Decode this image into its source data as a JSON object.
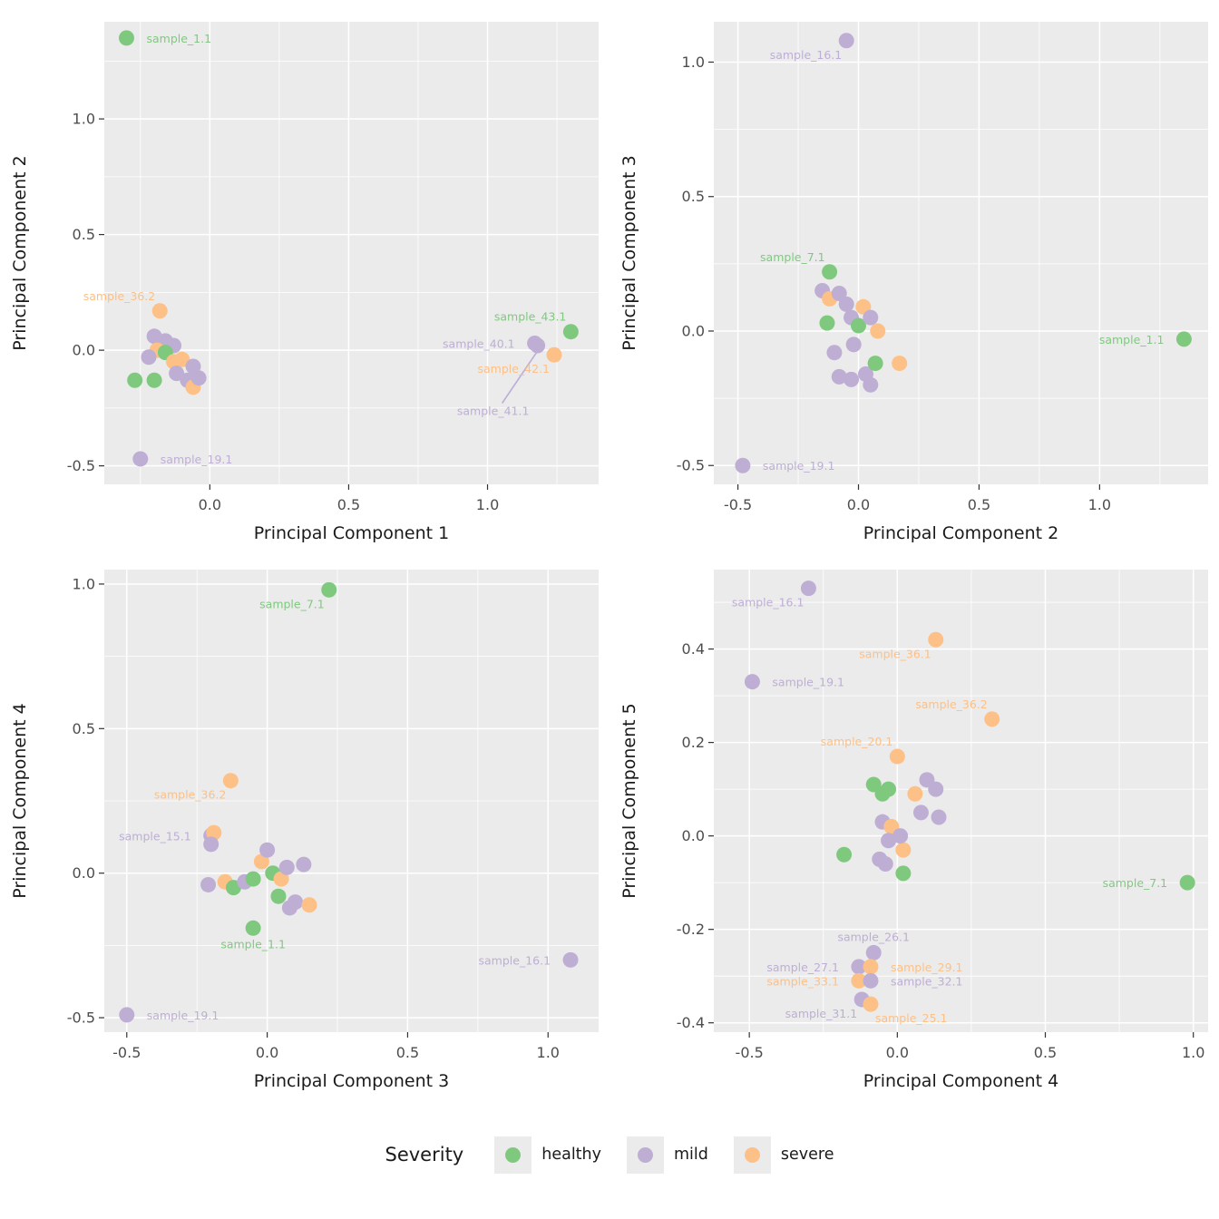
{
  "colors": {
    "healthy": "#7FC97F",
    "mild": "#BEAED4",
    "severe": "#FDC086",
    "panel_bg": "#EBEBEB",
    "grid_major": "#FFFFFF",
    "grid_minor": "#FFFFFF",
    "axis_text": "#4D4D4D",
    "axis_title": "#1a1a1a",
    "tick_mark": "#333333"
  },
  "legend": {
    "title": "Severity",
    "items": [
      {
        "label": "healthy",
        "severity": "healthy"
      },
      {
        "label": "mild",
        "severity": "mild"
      },
      {
        "label": "severe",
        "severity": "severe"
      }
    ]
  },
  "chart_data": [
    {
      "id": "pc2-vs-pc1",
      "type": "scatter",
      "xlabel": "Principal Component 1",
      "ylabel": "Principal Component 2",
      "xlim": [
        -0.38,
        1.4
      ],
      "ylim": [
        -0.58,
        1.42
      ],
      "xticks": [
        0.0,
        0.5,
        1.0
      ],
      "yticks": [
        -0.5,
        0.0,
        0.5,
        1.0
      ],
      "points": [
        {
          "x": -0.3,
          "y": 1.35,
          "severity": "healthy",
          "label": "sample_1.1",
          "label_pos": "right"
        },
        {
          "x": -0.18,
          "y": 0.17,
          "severity": "severe",
          "label": "sample_36.2",
          "label_pos": "above-left"
        },
        {
          "x": -0.25,
          "y": -0.47,
          "severity": "mild",
          "label": "sample_19.1",
          "label_pos": "right"
        },
        {
          "x": 1.3,
          "y": 0.08,
          "severity": "healthy",
          "label": "sample_43.1",
          "label_pos": "above-left"
        },
        {
          "x": 1.17,
          "y": 0.03,
          "severity": "mild",
          "label": "sample_40.1",
          "label_pos": "left"
        },
        {
          "x": 1.24,
          "y": -0.02,
          "severity": "severe",
          "label": "sample_42.1",
          "label_pos": "below-left"
        },
        {
          "x": 1.18,
          "y": 0.02,
          "severity": "mild",
          "label": "sample_41.1",
          "label_pos": "leader",
          "label_x": 1.02,
          "label_y": -0.28
        },
        {
          "x": -0.2,
          "y": 0.06,
          "severity": "mild"
        },
        {
          "x": -0.16,
          "y": 0.04,
          "severity": "mild"
        },
        {
          "x": -0.13,
          "y": 0.02,
          "severity": "mild"
        },
        {
          "x": -0.19,
          "y": 0.0,
          "severity": "severe"
        },
        {
          "x": -0.16,
          "y": -0.01,
          "severity": "healthy"
        },
        {
          "x": -0.22,
          "y": -0.03,
          "severity": "mild"
        },
        {
          "x": -0.13,
          "y": -0.05,
          "severity": "severe"
        },
        {
          "x": -0.1,
          "y": -0.04,
          "severity": "severe"
        },
        {
          "x": -0.12,
          "y": -0.1,
          "severity": "mild"
        },
        {
          "x": -0.08,
          "y": -0.13,
          "severity": "mild"
        },
        {
          "x": -0.06,
          "y": -0.07,
          "severity": "mild"
        },
        {
          "x": -0.06,
          "y": -0.16,
          "severity": "severe"
        },
        {
          "x": -0.04,
          "y": -0.12,
          "severity": "mild"
        },
        {
          "x": -0.27,
          "y": -0.13,
          "severity": "healthy"
        },
        {
          "x": -0.2,
          "y": -0.13,
          "severity": "healthy"
        }
      ]
    },
    {
      "id": "pc3-vs-pc2",
      "type": "scatter",
      "xlabel": "Principal Component 2",
      "ylabel": "Principal Component 3",
      "xlim": [
        -0.6,
        1.45
      ],
      "ylim": [
        -0.57,
        1.15
      ],
      "xticks": [
        -0.5,
        0.0,
        0.5,
        1.0
      ],
      "yticks": [
        -0.5,
        0.0,
        0.5,
        1.0
      ],
      "points": [
        {
          "x": -0.05,
          "y": 1.08,
          "severity": "mild",
          "label": "sample_16.1",
          "label_pos": "below-left"
        },
        {
          "x": -0.12,
          "y": 0.22,
          "severity": "healthy",
          "label": "sample_7.1",
          "label_pos": "above-left"
        },
        {
          "x": 1.35,
          "y": -0.03,
          "severity": "healthy",
          "label": "sample_1.1",
          "label_pos": "left"
        },
        {
          "x": -0.48,
          "y": -0.5,
          "severity": "mild",
          "label": "sample_19.1",
          "label_pos": "right"
        },
        {
          "x": -0.15,
          "y": 0.15,
          "severity": "mild"
        },
        {
          "x": -0.12,
          "y": 0.12,
          "severity": "severe"
        },
        {
          "x": -0.08,
          "y": 0.14,
          "severity": "mild"
        },
        {
          "x": -0.13,
          "y": 0.03,
          "severity": "healthy"
        },
        {
          "x": -0.05,
          "y": 0.1,
          "severity": "mild"
        },
        {
          "x": -0.03,
          "y": 0.05,
          "severity": "mild"
        },
        {
          "x": 0.0,
          "y": 0.02,
          "severity": "healthy"
        },
        {
          "x": 0.02,
          "y": 0.09,
          "severity": "severe"
        },
        {
          "x": 0.05,
          "y": 0.05,
          "severity": "mild"
        },
        {
          "x": 0.08,
          "y": 0.0,
          "severity": "severe"
        },
        {
          "x": -0.02,
          "y": -0.05,
          "severity": "mild"
        },
        {
          "x": -0.1,
          "y": -0.08,
          "severity": "mild"
        },
        {
          "x": -0.08,
          "y": -0.17,
          "severity": "mild"
        },
        {
          "x": -0.03,
          "y": -0.18,
          "severity": "mild"
        },
        {
          "x": 0.03,
          "y": -0.16,
          "severity": "mild"
        },
        {
          "x": 0.07,
          "y": -0.12,
          "severity": "healthy"
        },
        {
          "x": 0.17,
          "y": -0.12,
          "severity": "severe"
        },
        {
          "x": 0.05,
          "y": -0.2,
          "severity": "mild"
        }
      ]
    },
    {
      "id": "pc4-vs-pc3",
      "type": "scatter",
      "xlabel": "Principal Component 3",
      "ylabel": "Principal Component 4",
      "xlim": [
        -0.58,
        1.18
      ],
      "ylim": [
        -0.55,
        1.05
      ],
      "xticks": [
        -0.5,
        0.0,
        0.5,
        1.0
      ],
      "yticks": [
        -0.5,
        0.0,
        0.5,
        1.0
      ],
      "points": [
        {
          "x": 0.22,
          "y": 0.98,
          "severity": "healthy",
          "label": "sample_7.1",
          "label_pos": "below-left"
        },
        {
          "x": -0.13,
          "y": 0.32,
          "severity": "severe",
          "label": "sample_36.2",
          "label_pos": "below-left"
        },
        {
          "x": -0.2,
          "y": 0.13,
          "severity": "mild",
          "label": "sample_15.1",
          "label_pos": "left"
        },
        {
          "x": -0.05,
          "y": -0.19,
          "severity": "healthy",
          "label": "sample_1.1",
          "label_pos": "below"
        },
        {
          "x": 1.08,
          "y": -0.3,
          "severity": "mild",
          "label": "sample_16.1",
          "label_pos": "left"
        },
        {
          "x": -0.5,
          "y": -0.49,
          "severity": "mild",
          "label": "sample_19.1",
          "label_pos": "right"
        },
        {
          "x": -0.19,
          "y": 0.14,
          "severity": "severe"
        },
        {
          "x": -0.2,
          "y": 0.1,
          "severity": "mild"
        },
        {
          "x": -0.21,
          "y": -0.04,
          "severity": "mild"
        },
        {
          "x": -0.15,
          "y": -0.03,
          "severity": "severe"
        },
        {
          "x": -0.12,
          "y": -0.05,
          "severity": "healthy"
        },
        {
          "x": -0.08,
          "y": -0.03,
          "severity": "mild"
        },
        {
          "x": -0.05,
          "y": -0.02,
          "severity": "healthy"
        },
        {
          "x": -0.02,
          "y": 0.04,
          "severity": "severe"
        },
        {
          "x": 0.0,
          "y": 0.08,
          "severity": "mild"
        },
        {
          "x": 0.02,
          "y": 0.0,
          "severity": "healthy"
        },
        {
          "x": 0.05,
          "y": -0.02,
          "severity": "severe"
        },
        {
          "x": 0.07,
          "y": 0.02,
          "severity": "mild"
        },
        {
          "x": 0.1,
          "y": -0.1,
          "severity": "mild"
        },
        {
          "x": 0.13,
          "y": 0.03,
          "severity": "mild"
        },
        {
          "x": 0.15,
          "y": -0.11,
          "severity": "severe"
        },
        {
          "x": 0.04,
          "y": -0.08,
          "severity": "healthy"
        },
        {
          "x": 0.08,
          "y": -0.12,
          "severity": "mild"
        }
      ]
    },
    {
      "id": "pc5-vs-pc4",
      "type": "scatter",
      "xlabel": "Principal Component 4",
      "ylabel": "Principal Component 5",
      "xlim": [
        -0.62,
        1.05
      ],
      "ylim": [
        -0.42,
        0.57
      ],
      "xticks": [
        -0.5,
        0.0,
        0.5,
        1.0
      ],
      "yticks": [
        -0.4,
        -0.2,
        0.0,
        0.2,
        0.4
      ],
      "points": [
        {
          "x": -0.3,
          "y": 0.53,
          "severity": "mild",
          "label": "sample_16.1",
          "label_pos": "below-left"
        },
        {
          "x": 0.13,
          "y": 0.42,
          "severity": "severe",
          "label": "sample_36.1",
          "label_pos": "below-left"
        },
        {
          "x": -0.49,
          "y": 0.33,
          "severity": "mild",
          "label": "sample_19.1",
          "label_pos": "right"
        },
        {
          "x": 0.32,
          "y": 0.25,
          "severity": "severe",
          "label": "sample_36.2",
          "label_pos": "above-left"
        },
        {
          "x": 0.0,
          "y": 0.17,
          "severity": "severe",
          "label": "sample_20.1",
          "label_pos": "above-left"
        },
        {
          "x": 0.98,
          "y": -0.1,
          "severity": "healthy",
          "label": "sample_7.1",
          "label_pos": "left"
        },
        {
          "x": -0.08,
          "y": -0.25,
          "severity": "mild",
          "label": "sample_26.1",
          "label_pos": "above"
        },
        {
          "x": -0.13,
          "y": -0.28,
          "severity": "mild",
          "label": "sample_27.1",
          "label_pos": "left"
        },
        {
          "x": -0.09,
          "y": -0.28,
          "severity": "severe",
          "label": "sample_29.1",
          "label_pos": "right"
        },
        {
          "x": -0.13,
          "y": -0.31,
          "severity": "severe",
          "label": "sample_33.1",
          "label_pos": "left"
        },
        {
          "x": -0.09,
          "y": -0.31,
          "severity": "mild",
          "label": "sample_32.1",
          "label_pos": "right"
        },
        {
          "x": -0.12,
          "y": -0.35,
          "severity": "mild",
          "label": "sample_31.1",
          "label_pos": "below-left"
        },
        {
          "x": -0.09,
          "y": -0.36,
          "severity": "severe",
          "label": "sample_25.1",
          "label_pos": "below-right"
        },
        {
          "x": -0.08,
          "y": 0.11,
          "severity": "healthy"
        },
        {
          "x": -0.05,
          "y": 0.09,
          "severity": "healthy"
        },
        {
          "x": -0.03,
          "y": 0.1,
          "severity": "healthy"
        },
        {
          "x": 0.1,
          "y": 0.12,
          "severity": "mild"
        },
        {
          "x": 0.13,
          "y": 0.1,
          "severity": "mild"
        },
        {
          "x": 0.06,
          "y": 0.09,
          "severity": "severe"
        },
        {
          "x": 0.14,
          "y": 0.04,
          "severity": "mild"
        },
        {
          "x": 0.08,
          "y": 0.05,
          "severity": "mild"
        },
        {
          "x": -0.05,
          "y": 0.03,
          "severity": "mild"
        },
        {
          "x": -0.02,
          "y": 0.02,
          "severity": "severe"
        },
        {
          "x": -0.03,
          "y": -0.01,
          "severity": "mild"
        },
        {
          "x": 0.02,
          "y": -0.03,
          "severity": "severe"
        },
        {
          "x": -0.18,
          "y": -0.04,
          "severity": "healthy"
        },
        {
          "x": -0.06,
          "y": -0.05,
          "severity": "mild"
        },
        {
          "x": 0.02,
          "y": -0.08,
          "severity": "healthy"
        },
        {
          "x": -0.04,
          "y": -0.06,
          "severity": "mild"
        },
        {
          "x": 0.01,
          "y": 0.0,
          "severity": "mild"
        }
      ]
    }
  ]
}
